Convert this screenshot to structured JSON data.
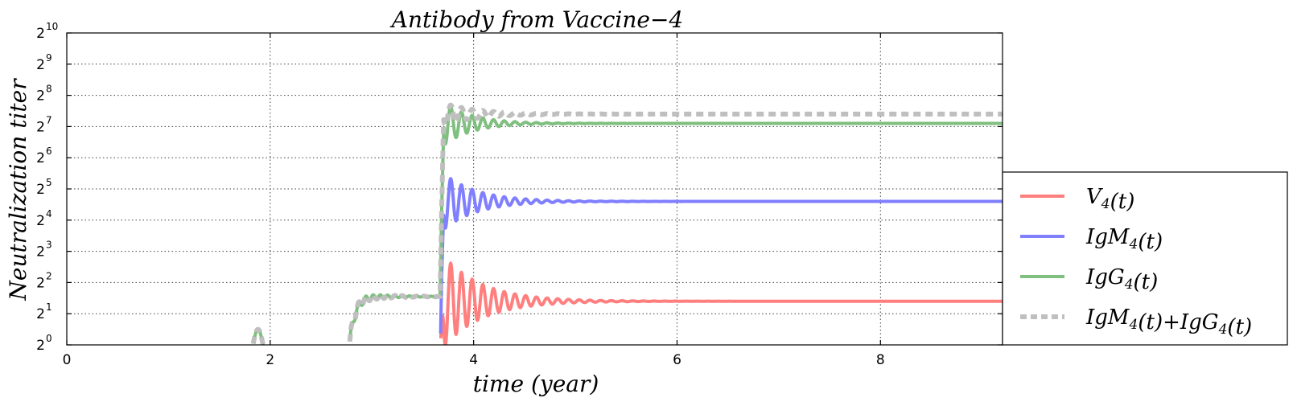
{
  "chart_data": {
    "type": "line",
    "title": "Antibody from Vaccine−4",
    "xlabel": "time (year)",
    "ylabel": "Neutralization  titer",
    "xlim": [
      0,
      9.2
    ],
    "ylim_log2": [
      0,
      10
    ],
    "yscale": "log2",
    "x_ticks": [
      0,
      2,
      4,
      6,
      8
    ],
    "y_ticks_base": "2",
    "y_ticks_exp": [
      "0",
      "1",
      "2",
      "3",
      "4",
      "5",
      "6",
      "7",
      "8",
      "9",
      "10"
    ],
    "grid": true,
    "legend_placement": "lower-right-outside",
    "events": [
      {
        "x": 1.87,
        "peak_log2": 0.5
      },
      {
        "x": 2.78,
        "level_log2": 1.55
      },
      {
        "x": 3.67,
        "booster": true
      }
    ],
    "series": [
      {
        "name": "V_4(t)",
        "label_main": "V",
        "label_sub": "4",
        "label_rest": "(t)",
        "color": "#ff7f7f",
        "steady_log2": 1.4,
        "peak_log2": 3.0,
        "dash": false
      },
      {
        "name": "IgM_4(t)",
        "label_main": "IgM",
        "label_sub": "4",
        "label_rest": "(t)",
        "color": "#7f7fff",
        "steady_log2": 4.6,
        "peak_log2": 5.6,
        "dash": false
      },
      {
        "name": "IgG_4(t)",
        "label_main": "IgG",
        "label_sub": "4",
        "label_rest": "(t)",
        "color": "#7fbf7f",
        "steady_log2": 7.1,
        "peak_log2": 7.55,
        "pre_level_log2": 1.55,
        "dash": false
      },
      {
        "name": "IgM_4(t)+IgG_4(t)",
        "label_main": "IgM",
        "label_sub": "4",
        "label_rest": "(t)+IgG",
        "label_sub2": "4",
        "label_rest2": "(t)",
        "color": "#bfbfbf",
        "steady_log2": 7.4,
        "peak_log2": 7.8,
        "pre_level_log2": 1.55,
        "dash": true
      }
    ]
  }
}
